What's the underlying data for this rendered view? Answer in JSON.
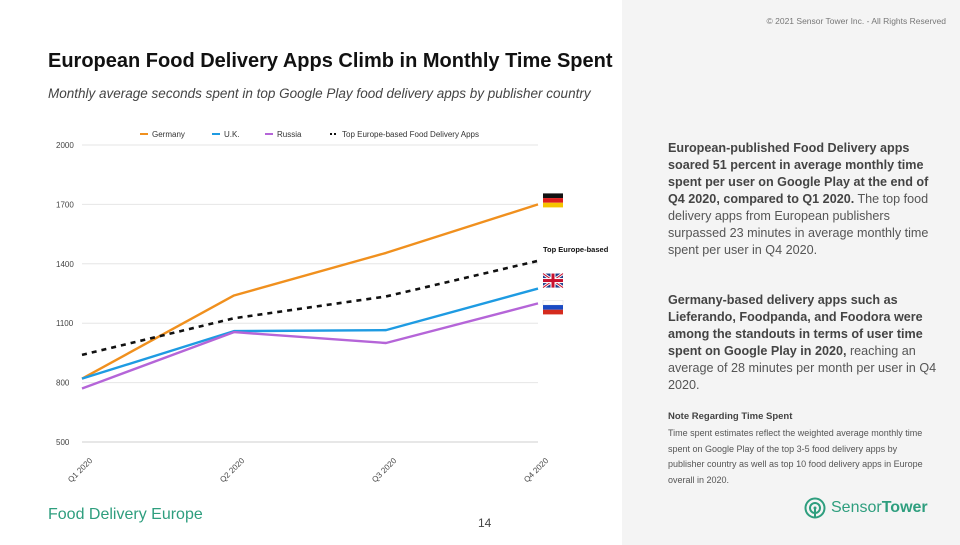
{
  "copyright": "© 2021 Sensor Tower Inc. - All Rights Reserved",
  "page_number": "14",
  "footer_label": "Food Delivery Europe",
  "logo": {
    "part1": "Sensor",
    "part2": "Tower",
    "icon": "sensor-tower-logo-icon"
  },
  "paragraph1": {
    "bold": "European-published Food Delivery apps soared 51 percent in average monthly time spent per user on Google Play at the end of Q4 2020, compared to Q1 2020.",
    "regular": " The top food delivery apps from European publishers surpassed 23 minutes in average monthly time spent per user in Q4 2020."
  },
  "paragraph2": {
    "bold": "Germany-based delivery apps such as Lieferando, Foodpanda, and Foodora were among the standouts in terms of user time spent on Google Play in 2020,",
    "regular": " reaching an average of 28 minutes per month per user in Q4 2020."
  },
  "note": {
    "title": "Note Regarding Time Spent",
    "body": "Time spent estimates reflect the weighted average monthly time spent on Google Play of the top 3-5 food delivery apps by publisher country as well as top 10 food delivery apps in Europe overall in 2020."
  },
  "chart_data": {
    "type": "line",
    "title": "European Food Delivery Apps Climb in Monthly Time Spent",
    "subtitle": "Monthly average seconds spent in top Google Play food delivery apps by publisher country",
    "categories": [
      "Q1 2020",
      "Q2 2020",
      "Q3 2020",
      "Q4 2020"
    ],
    "ylim": [
      500,
      2000
    ],
    "yticks": [
      500,
      800,
      1100,
      1400,
      1700,
      2000
    ],
    "grid": "horizontal",
    "legend_position": "top",
    "series": [
      {
        "name": "Germany",
        "values": [
          820,
          1240,
          1455,
          1700
        ],
        "color": "#f0901e",
        "dash": false,
        "flag": "germany-flag-icon"
      },
      {
        "name": "U.K.",
        "values": [
          820,
          1060,
          1065,
          1275
        ],
        "color": "#1e9be2",
        "dash": false,
        "flag": "uk-flag-icon"
      },
      {
        "name": "Russia",
        "values": [
          770,
          1055,
          1000,
          1200
        ],
        "color": "#b565d8",
        "dash": false,
        "flag": "russia-flag-icon"
      },
      {
        "name": "Top Europe-based Food Delivery Apps",
        "values": [
          940,
          1125,
          1235,
          1415
        ],
        "color": "#111111",
        "dash": true,
        "end_label": "Top Europe-based"
      }
    ]
  }
}
